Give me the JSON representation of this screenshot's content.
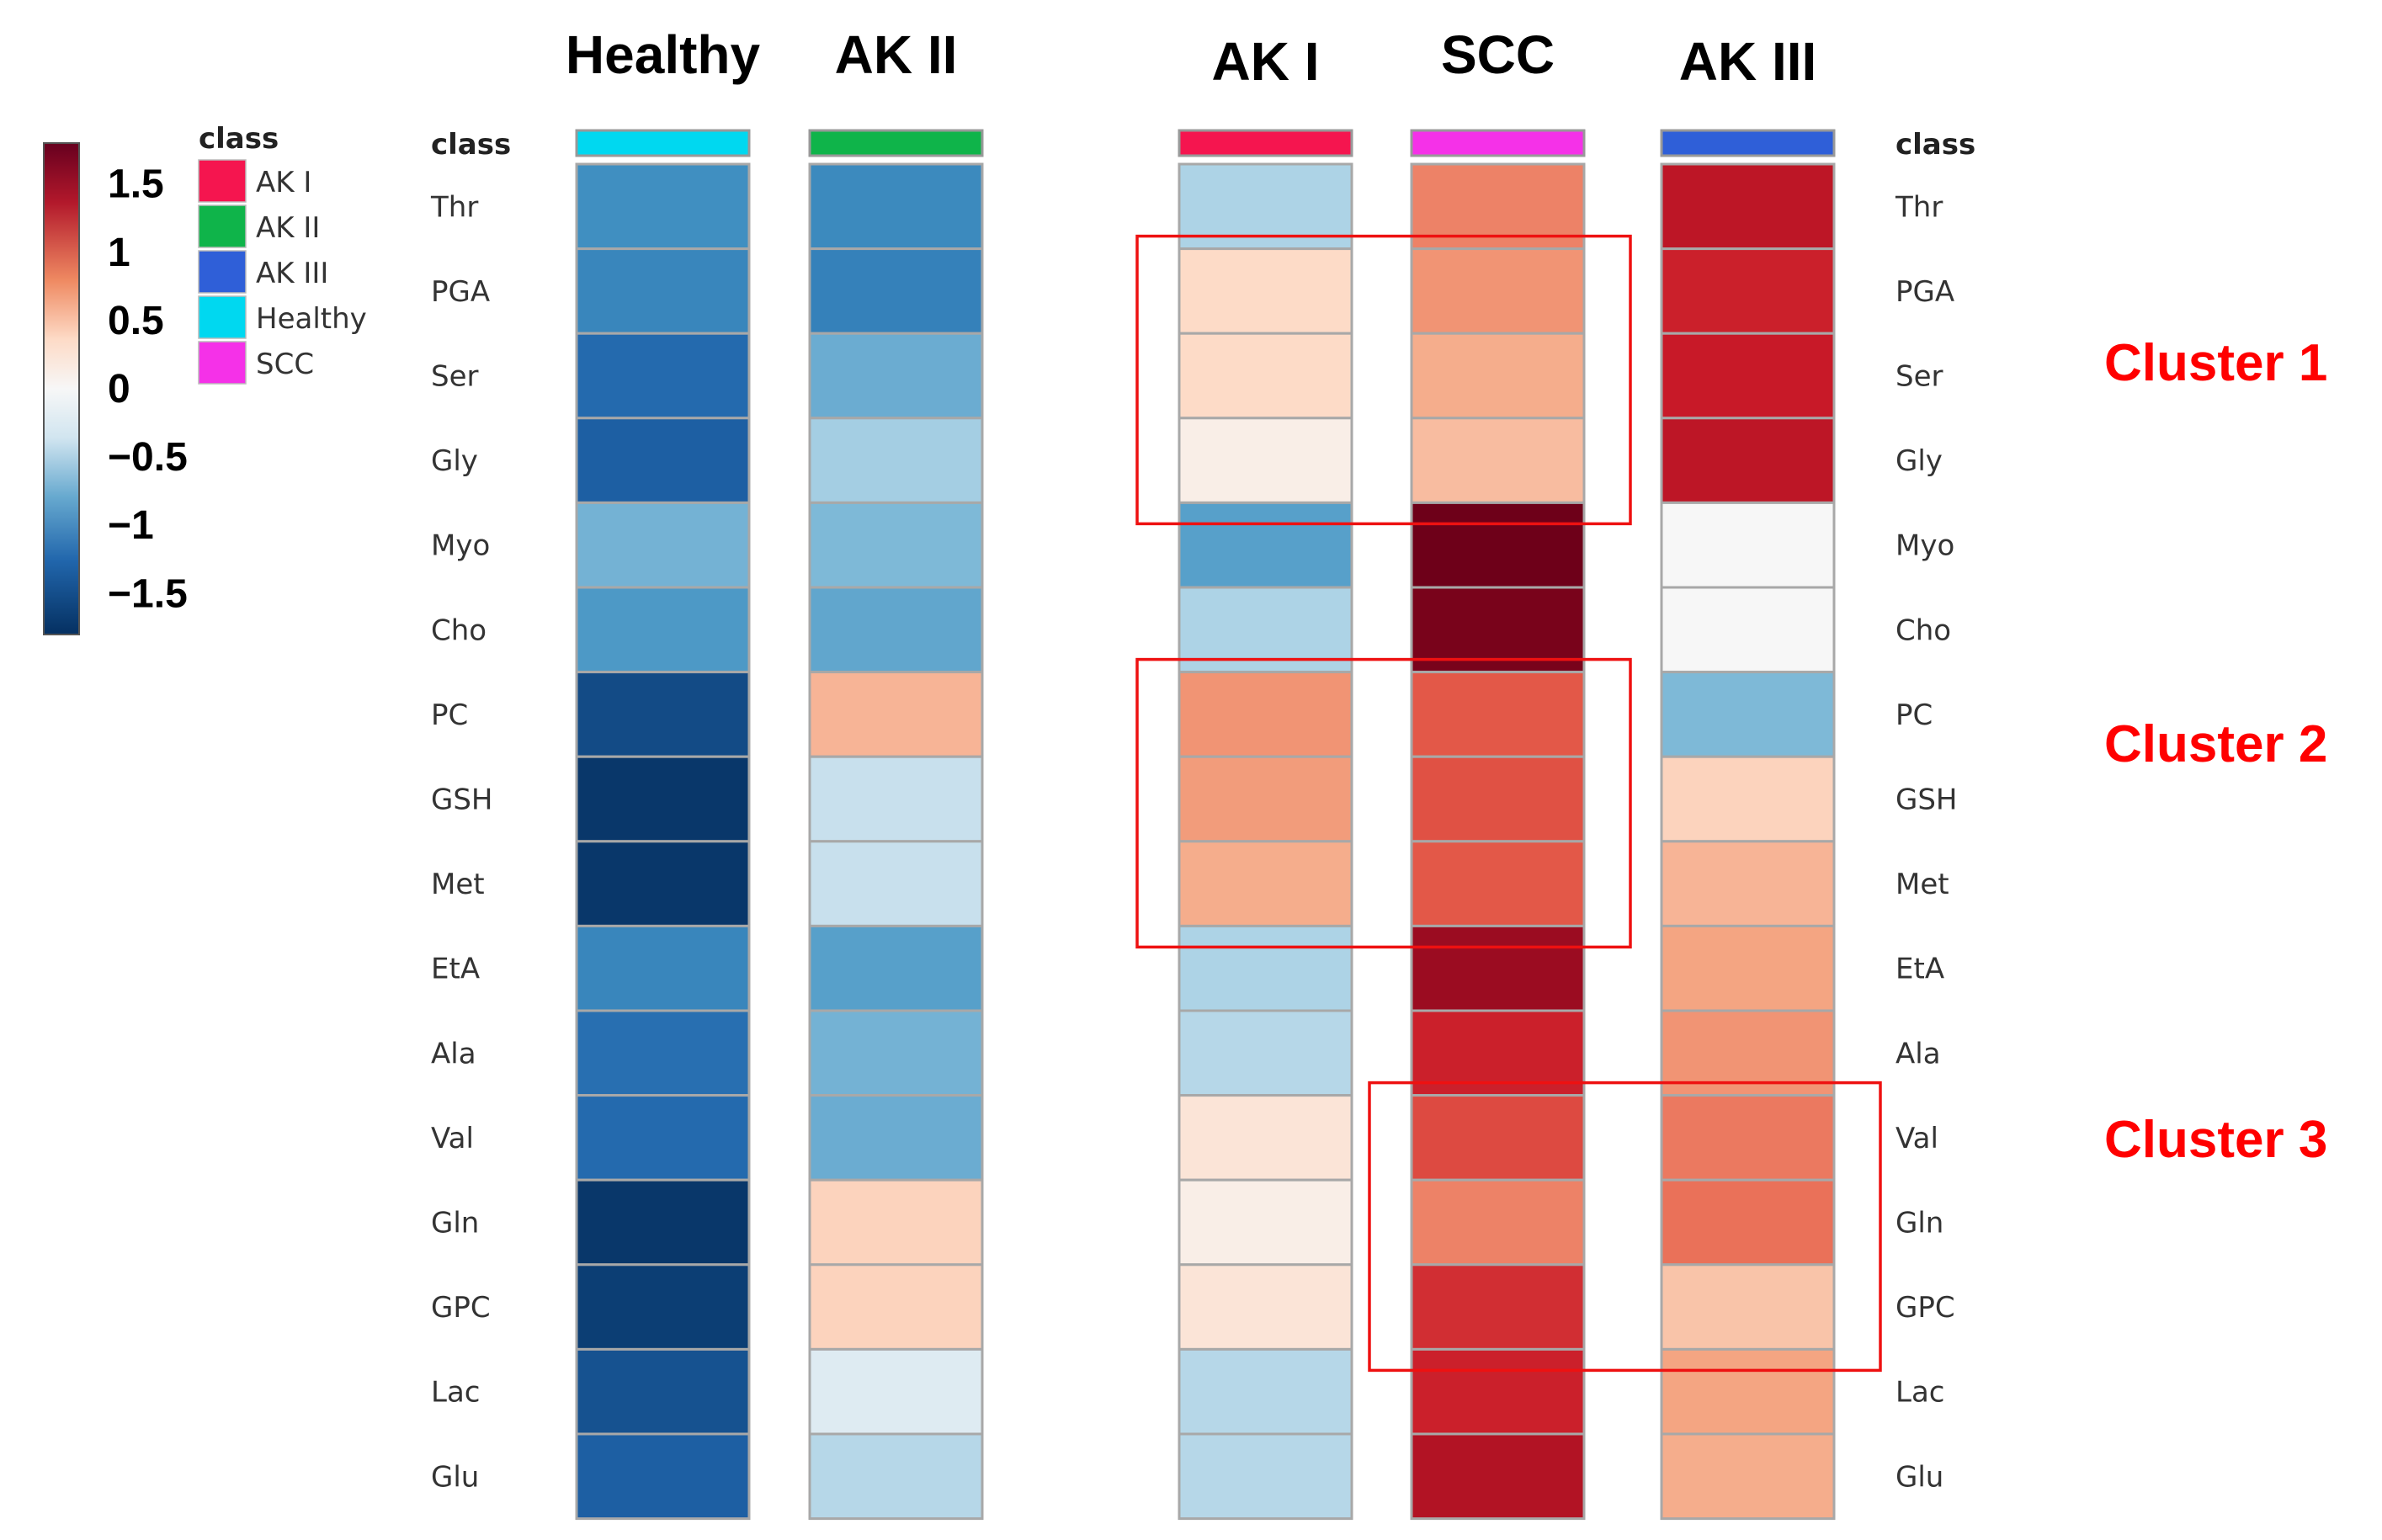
{
  "chart_data": {
    "type": "heatmap",
    "color_scale": {
      "min": -1.8,
      "max": 1.8,
      "ticks": [
        "1.5",
        "1",
        "0.5",
        "0",
        "−0.5",
        "−1",
        "−1.5"
      ],
      "tick_values": [
        1.5,
        1,
        0.5,
        0,
        -0.5,
        -1,
        -1.5
      ],
      "low_color": "#053061",
      "mid_color": "#f7f7f7",
      "high_color": "#67001f"
    },
    "class_legend": {
      "title": "class",
      "items": [
        {
          "label": "AK I",
          "color": "#f5154f"
        },
        {
          "label": "AK II",
          "color": "#0fb44a"
        },
        {
          "label": "AK III",
          "color": "#2f5fd8"
        },
        {
          "label": "Healthy",
          "color": "#00d8f0"
        },
        {
          "label": "SCC",
          "color": "#f531e8"
        }
      ]
    },
    "class_row_label": "class",
    "rows": [
      "Thr",
      "PGA",
      "Ser",
      "Gly",
      "Myo",
      "Cho",
      "PC",
      "GSH",
      "Met",
      "EtA",
      "Ala",
      "Val",
      "Gln",
      "GPC",
      "Lac",
      "Glu"
    ],
    "columns": [
      {
        "name": "Healthy",
        "class_color": "#00d8f0",
        "values": [
          -0.95,
          -1.05,
          -1.35,
          -1.45,
          -0.65,
          -0.85,
          -1.6,
          -1.75,
          -1.75,
          -1.05,
          -1.3,
          -1.35,
          -1.75,
          -1.7,
          -1.55,
          -1.45
        ]
      },
      {
        "name": "AK II",
        "class_color": "#0fb44a",
        "values": [
          -1.0,
          -1.1,
          -0.7,
          -0.4,
          -0.6,
          -0.75,
          0.4,
          -0.2,
          -0.2,
          -0.8,
          -0.65,
          -0.7,
          0.2,
          0.2,
          -0.1,
          -0.3
        ]
      },
      {
        "name": "AK I",
        "class_color": "#f5154f",
        "values": [
          -0.35,
          0.15,
          0.15,
          0.05,
          -0.8,
          -0.35,
          0.6,
          0.55,
          0.45,
          -0.35,
          -0.3,
          0.1,
          0.05,
          0.1,
          -0.3,
          -0.3
        ]
      },
      {
        "name": "SCC",
        "class_color": "#f531e8",
        "values": [
          0.7,
          0.6,
          0.45,
          0.35,
          1.8,
          1.75,
          0.95,
          1.0,
          0.95,
          1.6,
          1.35,
          1.05,
          0.7,
          1.25,
          1.35,
          1.5
        ]
      },
      {
        "name": "AK III",
        "class_color": "#2f5fd8",
        "values": [
          1.45,
          1.35,
          1.4,
          1.45,
          0.0,
          0.0,
          -0.6,
          0.2,
          0.4,
          0.5,
          0.6,
          0.75,
          0.8,
          0.3,
          0.5,
          0.45
        ]
      }
    ],
    "annotations": [
      {
        "label": "Cluster 1",
        "columns": [
          "AK I",
          "SCC"
        ],
        "rows": [
          "PGA",
          "Ser",
          "Gly"
        ]
      },
      {
        "label": "Cluster 2",
        "columns": [
          "AK I",
          "SCC"
        ],
        "rows": [
          "PC",
          "GSH",
          "Met"
        ]
      },
      {
        "label": "Cluster 3",
        "columns": [
          "SCC",
          "AK III"
        ],
        "rows": [
          "Val",
          "Gln",
          "GPC"
        ]
      }
    ]
  }
}
